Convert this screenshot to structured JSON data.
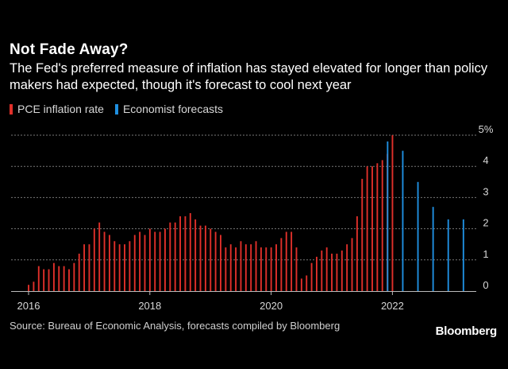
{
  "title": "Not Fade Away?",
  "subtitle": "The Fed's preferred measure of inflation has stayed elevated for longer than policy makers had expected, though it's forecast to cool next year",
  "legend": {
    "pce_label": "PCE inflation rate",
    "forecast_label": "Economist forecasts"
  },
  "colors": {
    "pce": "#e0302a",
    "forecast": "#1f8fe0",
    "grid": "#777777",
    "axis": "#bbbbbb"
  },
  "source": "Source: Bureau of Economic Analysis, forecasts compiled by Bloomberg",
  "brand": "Bloomberg",
  "chart_data": {
    "type": "bar",
    "title": "Not Fade Away?",
    "xlabel": "",
    "ylabel": "",
    "ylim": [
      0,
      5
    ],
    "yticks": [
      {
        "value": 0,
        "label": "0"
      },
      {
        "value": 1,
        "label": "1"
      },
      {
        "value": 2,
        "label": "2"
      },
      {
        "value": 3,
        "label": "3"
      },
      {
        "value": 4,
        "label": "4"
      },
      {
        "value": 5,
        "label": "5%"
      }
    ],
    "xticks": [
      {
        "year": 2016,
        "label": "2016"
      },
      {
        "year": 2018,
        "label": "2018"
      },
      {
        "year": 2020,
        "label": "2020"
      },
      {
        "year": 2022,
        "label": "2022"
      }
    ],
    "xlim": [
      2016.0,
      2023.5
    ],
    "series": [
      {
        "name": "PCE inflation rate",
        "start": "2016-01",
        "interval": "monthly",
        "values": [
          0.2,
          0.3,
          0.8,
          0.7,
          0.7,
          0.9,
          0.8,
          0.8,
          0.7,
          0.9,
          1.2,
          1.5,
          1.5,
          2.0,
          2.2,
          1.9,
          1.8,
          1.6,
          1.5,
          1.5,
          1.6,
          1.8,
          1.9,
          1.8,
          2.0,
          1.9,
          1.9,
          2.0,
          2.2,
          2.2,
          2.4,
          2.4,
          2.5,
          2.3,
          2.1,
          2.1,
          2.0,
          1.9,
          1.8,
          1.4,
          1.5,
          1.4,
          1.6,
          1.5,
          1.5,
          1.6,
          1.4,
          1.4,
          1.4,
          1.5,
          1.7,
          1.9,
          1.9,
          1.4,
          0.4,
          0.5,
          0.9,
          1.1,
          1.3,
          1.4,
          1.2,
          1.2,
          1.3,
          1.5,
          1.7,
          2.4,
          3.6,
          4.0,
          4.0,
          4.1,
          4.2,
          4.4,
          5.0
        ]
      },
      {
        "name": "Economist forecasts",
        "points": [
          {
            "x": 2021.92,
            "value": 4.8
          },
          {
            "x": 2022.17,
            "value": 4.5
          },
          {
            "x": 2022.42,
            "value": 3.5
          },
          {
            "x": 2022.67,
            "value": 2.7
          },
          {
            "x": 2022.92,
            "value": 2.3
          },
          {
            "x": 2023.17,
            "value": 2.3
          }
        ]
      }
    ]
  }
}
